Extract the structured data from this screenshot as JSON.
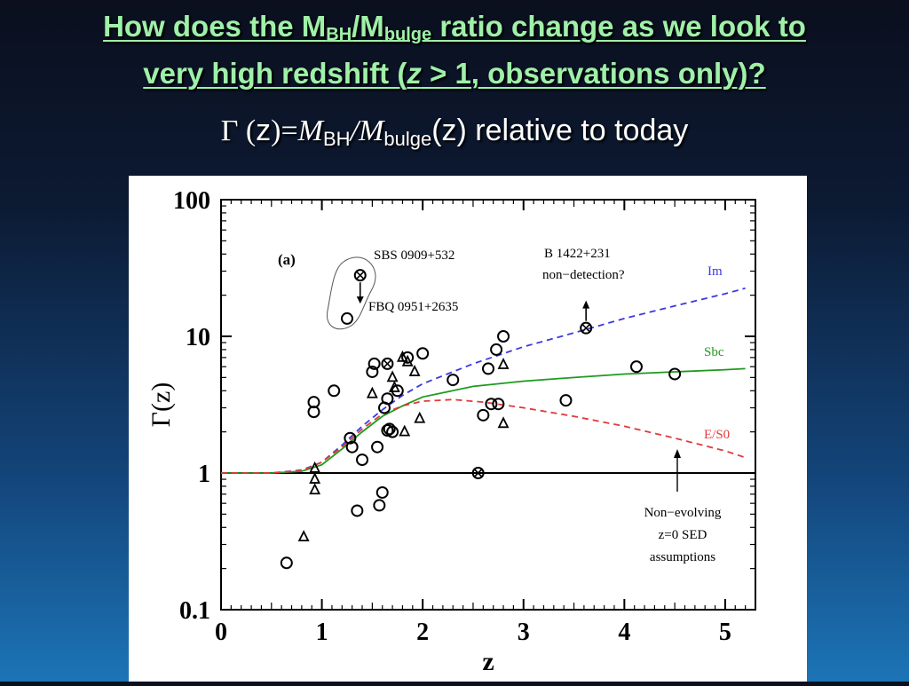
{
  "slide": {
    "title_line1_a": "How does the M",
    "title_line1_sub1": "BH",
    "title_line1_b": "/M",
    "title_line1_sub2": "bulge",
    "title_line1_c": " ratio change as we look to",
    "title_line2_a": "very high redshift (",
    "title_line2_z": "z",
    "title_line2_b": " > 1, observations only)?",
    "subtitle_gamma": "Γ",
    "subtitle_paren": " (",
    "subtitle_z": "z",
    "subtitle_eq": ")=",
    "subtitle_m1": "M",
    "subtitle_sub1": "BH",
    "subtitle_slash": "/",
    "subtitle_m2": "M",
    "subtitle_sub2": "bulge",
    "subtitle_tail": "(z) relative to today"
  },
  "chart_data": {
    "type": "scatter",
    "panel_label": "(a)",
    "xlabel": "z",
    "ylabel": "Γ(z)",
    "xlim": [
      0,
      5.3
    ],
    "ylim": [
      0.1,
      100
    ],
    "yscale": "log",
    "xticks": [
      "0",
      "1",
      "2",
      "3",
      "4",
      "5"
    ],
    "yticks": [
      "0.1",
      "1",
      "10",
      "100"
    ],
    "colors": {
      "im": "#3a3ae0",
      "sbc": "#1f9a1f",
      "es0": "#e03a3a"
    },
    "curves": [
      {
        "label": "Im",
        "style": "dashed",
        "color": "#3a3ae0",
        "points": [
          [
            0,
            1
          ],
          [
            0.5,
            1.0
          ],
          [
            0.8,
            1.05
          ],
          [
            1.0,
            1.2
          ],
          [
            1.2,
            1.6
          ],
          [
            1.4,
            2.2
          ],
          [
            1.6,
            2.9
          ],
          [
            1.8,
            3.7
          ],
          [
            2.0,
            4.5
          ],
          [
            2.5,
            6.3
          ],
          [
            3.0,
            8.4
          ],
          [
            3.5,
            10.6
          ],
          [
            4.0,
            13.5
          ],
          [
            4.5,
            16.7
          ],
          [
            5.0,
            20.5
          ],
          [
            5.2,
            22.5
          ]
        ]
      },
      {
        "label": "Sbc",
        "style": "solid",
        "color": "#1f9a1f",
        "points": [
          [
            0,
            1
          ],
          [
            0.5,
            1.0
          ],
          [
            0.8,
            1.03
          ],
          [
            1.0,
            1.15
          ],
          [
            1.2,
            1.5
          ],
          [
            1.4,
            2.0
          ],
          [
            1.6,
            2.6
          ],
          [
            1.8,
            3.1
          ],
          [
            2.0,
            3.6
          ],
          [
            2.5,
            4.3
          ],
          [
            3.0,
            4.7
          ],
          [
            3.5,
            5.0
          ],
          [
            4.0,
            5.3
          ],
          [
            4.5,
            5.5
          ],
          [
            5.0,
            5.7
          ],
          [
            5.2,
            5.8
          ]
        ]
      },
      {
        "label": "E/S0",
        "style": "dashed",
        "color": "#e03a3a",
        "points": [
          [
            0,
            1
          ],
          [
            0.5,
            1.0
          ],
          [
            0.8,
            1.04
          ],
          [
            1.0,
            1.2
          ],
          [
            1.2,
            1.55
          ],
          [
            1.4,
            2.1
          ],
          [
            1.6,
            2.7
          ],
          [
            1.8,
            3.1
          ],
          [
            2.0,
            3.35
          ],
          [
            2.3,
            3.45
          ],
          [
            2.6,
            3.3
          ],
          [
            3.0,
            3.0
          ],
          [
            3.5,
            2.6
          ],
          [
            4.0,
            2.2
          ],
          [
            4.5,
            1.8
          ],
          [
            5.0,
            1.45
          ],
          [
            5.2,
            1.3
          ]
        ]
      }
    ],
    "circles": [
      [
        0.65,
        0.22
      ],
      [
        0.92,
        3.3
      ],
      [
        0.92,
        2.8
      ],
      [
        1.12,
        4.0
      ],
      [
        1.25,
        13.5
      ],
      [
        1.28,
        1.8
      ],
      [
        1.3,
        1.55
      ],
      [
        1.35,
        0.53
      ],
      [
        1.4,
        1.25
      ],
      [
        1.5,
        5.5
      ],
      [
        1.52,
        6.3
      ],
      [
        1.55,
        1.55
      ],
      [
        1.57,
        0.58
      ],
      [
        1.6,
        0.72
      ],
      [
        1.62,
        3.0
      ],
      [
        1.65,
        3.5
      ],
      [
        1.65,
        2.05
      ],
      [
        1.67,
        2.1
      ],
      [
        1.7,
        2.0
      ],
      [
        1.75,
        4.0
      ],
      [
        1.85,
        7.0
      ],
      [
        2.0,
        7.5
      ],
      [
        2.3,
        4.8
      ],
      [
        2.6,
        2.65
      ],
      [
        2.65,
        5.8
      ],
      [
        2.68,
        3.2
      ],
      [
        2.73,
        8.0
      ],
      [
        2.75,
        3.2
      ],
      [
        2.8,
        10.0
      ],
      [
        3.42,
        3.4
      ],
      [
        4.12,
        6.0
      ],
      [
        4.5,
        5.3
      ]
    ],
    "crossed_circles": [
      [
        1.38,
        28
      ],
      [
        1.65,
        6.3
      ],
      [
        2.55,
        1.0
      ],
      [
        3.62,
        11.5
      ]
    ],
    "triangles": [
      [
        0.82,
        0.34
      ],
      [
        0.93,
        1.08
      ],
      [
        0.93,
        0.9
      ],
      [
        0.93,
        0.75
      ],
      [
        1.5,
        3.8
      ],
      [
        1.7,
        5.0
      ],
      [
        1.72,
        4.2
      ],
      [
        1.8,
        7.0
      ],
      [
        1.82,
        2.0
      ],
      [
        1.85,
        6.5
      ],
      [
        1.92,
        5.5
      ],
      [
        1.97,
        2.5
      ],
      [
        2.8,
        6.2
      ],
      [
        2.8,
        2.3
      ]
    ],
    "annotations": [
      {
        "text": "SBS 0909+532"
      },
      {
        "text": "FBQ 0951+2635"
      },
      {
        "text": "B 1422+231"
      },
      {
        "text": "non−detection?"
      },
      {
        "text": "Im"
      },
      {
        "text": "Sbc"
      },
      {
        "text": "E/S0"
      },
      {
        "text": "Non−evolving"
      },
      {
        "text": "z=0 SED"
      },
      {
        "text": "assumptions"
      }
    ]
  }
}
